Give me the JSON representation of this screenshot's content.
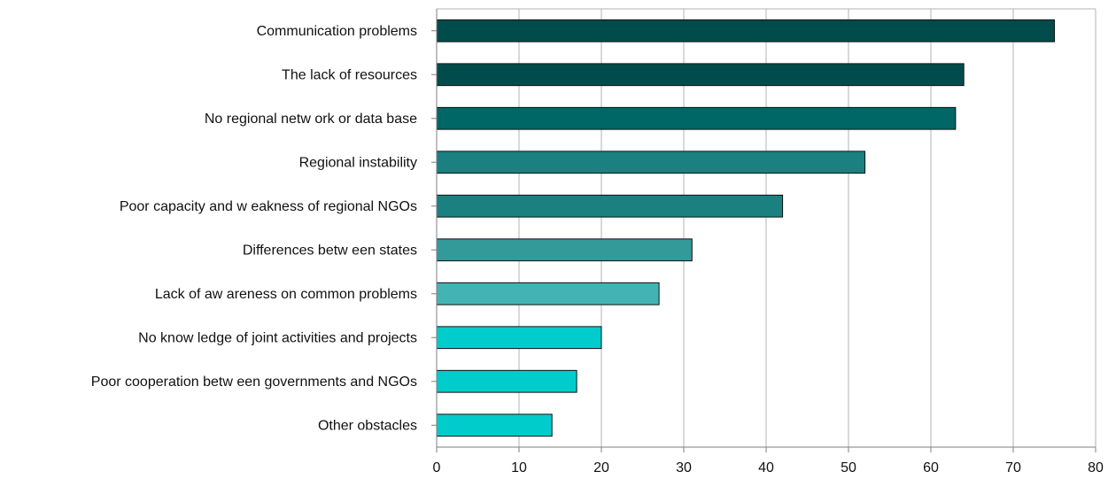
{
  "chart_data": {
    "type": "bar",
    "orientation": "horizontal",
    "title": "",
    "xlabel": "",
    "ylabel": "",
    "categories": [
      "Communication problems",
      "The lack of resources",
      "No regional netw ork or data base",
      "Regional instability",
      "Poor capacity and w eakness of regional NGOs",
      "Differences betw een states",
      "Lack of aw areness on common problems",
      "No know ledge of joint activities and projects",
      "Poor cooperation betw een governments and NGOs",
      "Other obstacles"
    ],
    "values": [
      75,
      64,
      63,
      52,
      42,
      31,
      27,
      20,
      17,
      14
    ],
    "bar_colors": [
      "#004c4c",
      "#004c4c",
      "#006666",
      "#1a8080",
      "#1a8080",
      "#339999",
      "#44b3b3",
      "#00cccc",
      "#00cccc",
      "#00cccc"
    ],
    "xlim": [
      0,
      80
    ],
    "xticks": [
      0,
      10,
      20,
      30,
      40,
      50,
      60,
      70,
      80
    ],
    "grid": "vertical",
    "legend": "none"
  }
}
